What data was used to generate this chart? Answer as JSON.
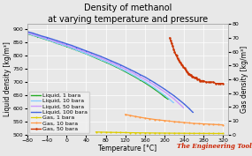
{
  "title": "Density of methanol",
  "subtitle": "at varying temperature and pressure",
  "xlabel": "Temperature [°C]",
  "ylabel_left": "Liquid density [kg/m³]",
  "ylabel_right": "Gas density [kg/m³]",
  "xlim": [
    -80,
    330
  ],
  "ylim_left": [
    500,
    920
  ],
  "ylim_right": [
    0,
    80
  ],
  "xticks": [
    -80,
    -40,
    0,
    40,
    80,
    120,
    160,
    200,
    240,
    280,
    320
  ],
  "yticks_left": [
    500,
    550,
    600,
    650,
    700,
    750,
    800,
    850,
    900
  ],
  "yticks_right": [
    0,
    10,
    20,
    30,
    40,
    50,
    60,
    70,
    80
  ],
  "background_color": "#e8e8e8",
  "grid_color": "#ffffff",
  "watermark": "The Engineering ToolBox",
  "liquid_lines": [
    {
      "label": "Liquid, 1 bara",
      "color": "#22aa22",
      "lw": 1.0,
      "x": [
        -80,
        -70,
        -60,
        -50,
        -40,
        -30,
        -20,
        -10,
        0,
        10,
        20,
        30,
        40,
        50,
        60,
        70,
        80,
        90,
        100,
        110,
        120,
        130,
        140,
        150,
        160,
        170,
        180,
        190,
        200,
        207
      ],
      "y": [
        883,
        878,
        872,
        866,
        860,
        854,
        847,
        841,
        835,
        828,
        821,
        814,
        807,
        799,
        791,
        783,
        775,
        767,
        758,
        749,
        739,
        729,
        719,
        708,
        697,
        685,
        672,
        659,
        644,
        635
      ]
    },
    {
      "label": "Liquid, 10 bara",
      "color": "#88ccff",
      "lw": 1.0,
      "x": [
        -80,
        -70,
        -60,
        -50,
        -40,
        -30,
        -20,
        -10,
        0,
        10,
        20,
        30,
        40,
        50,
        60,
        70,
        80,
        90,
        100,
        110,
        120,
        130,
        140,
        150,
        160,
        170,
        180,
        190,
        200,
        210,
        218
      ],
      "y": [
        884,
        879,
        873,
        867,
        861,
        855,
        848,
        842,
        836,
        829,
        822,
        815,
        808,
        800,
        793,
        785,
        777,
        769,
        760,
        751,
        742,
        732,
        722,
        711,
        701,
        689,
        677,
        663,
        650,
        635,
        622
      ]
    },
    {
      "label": "Liquid, 50 bara",
      "color": "#cc99ff",
      "lw": 1.0,
      "x": [
        -80,
        -70,
        -60,
        -50,
        -40,
        -30,
        -20,
        -10,
        0,
        10,
        20,
        30,
        40,
        50,
        60,
        70,
        80,
        90,
        100,
        110,
        120,
        130,
        140,
        150,
        160,
        170,
        180,
        190,
        200,
        210,
        220,
        230,
        238
      ],
      "y": [
        887,
        882,
        876,
        870,
        865,
        858,
        852,
        846,
        840,
        833,
        827,
        820,
        813,
        806,
        798,
        791,
        783,
        775,
        767,
        758,
        749,
        740,
        730,
        720,
        710,
        699,
        688,
        675,
        663,
        649,
        635,
        618,
        604
      ]
    },
    {
      "label": "Liquid, 100 bara",
      "color": "#4466dd",
      "lw": 1.0,
      "x": [
        -80,
        -70,
        -60,
        -50,
        -40,
        -30,
        -20,
        -10,
        0,
        10,
        20,
        30,
        40,
        50,
        60,
        70,
        80,
        90,
        100,
        110,
        120,
        130,
        140,
        150,
        160,
        170,
        180,
        190,
        200,
        210,
        220,
        230,
        240,
        250,
        258
      ],
      "y": [
        891,
        886,
        880,
        874,
        869,
        863,
        857,
        851,
        845,
        839,
        832,
        825,
        818,
        811,
        804,
        797,
        789,
        781,
        773,
        765,
        756,
        747,
        738,
        728,
        719,
        708,
        697,
        685,
        673,
        660,
        647,
        632,
        617,
        600,
        585
      ]
    }
  ],
  "gas_lines": [
    {
      "label": "Gas, 1 bara",
      "color": "#ddcc00",
      "lw": 0.9,
      "ms": 1.5,
      "x": [
        60,
        70,
        80,
        90,
        100,
        110,
        120,
        130,
        140,
        150,
        160,
        170,
        180,
        190,
        200,
        210,
        220,
        230,
        240,
        250,
        260,
        270,
        280,
        290,
        300,
        310,
        320
      ],
      "y_gas": [
        1.8,
        1.7,
        1.62,
        1.55,
        1.48,
        1.41,
        1.35,
        1.29,
        1.24,
        1.19,
        1.14,
        1.1,
        1.06,
        1.02,
        0.98,
        0.95,
        0.92,
        0.89,
        0.86,
        0.83,
        0.81,
        0.79,
        0.77,
        0.75,
        0.73,
        0.71,
        0.7
      ]
    },
    {
      "label": "Gas, 10 bara",
      "color": "#ff9944",
      "lw": 0.9,
      "ms": 1.5,
      "x": [
        120,
        130,
        140,
        150,
        160,
        170,
        180,
        190,
        200,
        210,
        220,
        230,
        240,
        250,
        260,
        270,
        280,
        290,
        300,
        310,
        320
      ],
      "y_gas": [
        14.5,
        13.8,
        13.1,
        12.5,
        11.9,
        11.4,
        10.9,
        10.5,
        10.1,
        9.7,
        9.3,
        9.0,
        8.7,
        8.4,
        8.1,
        7.9,
        7.7,
        7.5,
        7.3,
        7.1,
        6.9
      ]
    },
    {
      "label": "Gas, 50 bara",
      "color": "#cc3300",
      "lw": 1.0,
      "ms": 1.8,
      "x": [
        211,
        213,
        215,
        217,
        219,
        221,
        223,
        225,
        227,
        229,
        231,
        233,
        235,
        237,
        239,
        241,
        243,
        245,
        247,
        249,
        251,
        253,
        255,
        257,
        259,
        261,
        263,
        265,
        267,
        270,
        273,
        276,
        280,
        285,
        290,
        295,
        300,
        305,
        310,
        315,
        320
      ],
      "y_gas": [
        70,
        68,
        66,
        64,
        62,
        60,
        58,
        57,
        55,
        54,
        53,
        52,
        51,
        50,
        49,
        48,
        47,
        46,
        45,
        44,
        44,
        43,
        43,
        42,
        42,
        41,
        41,
        41,
        40,
        40,
        39,
        39,
        39,
        38,
        38,
        38,
        38,
        37,
        37,
        37,
        37
      ]
    }
  ],
  "legend_fontsize": 4.5,
  "title_fontsize": 7.0,
  "subtitle_fontsize": 6.0,
  "tick_fontsize": 4.5,
  "label_fontsize": 5.5
}
